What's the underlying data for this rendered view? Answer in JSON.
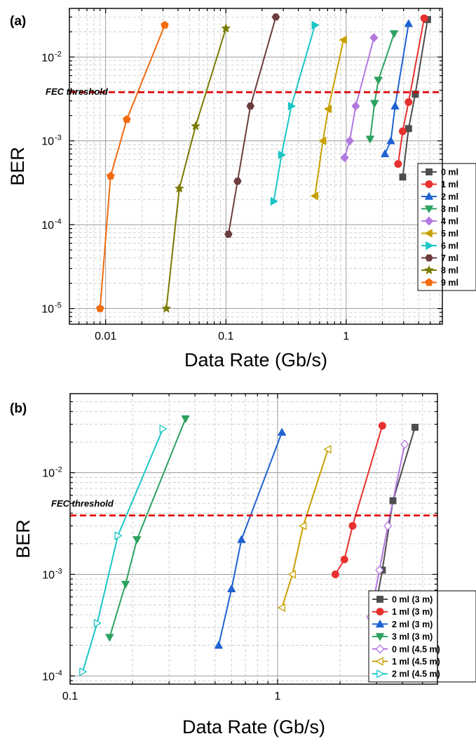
{
  "chart_data": [
    {
      "panel_label": "(a)",
      "type": "line",
      "xlabel": "Data Rate (Gb/s)",
      "ylabel": "BER",
      "xscale": "log",
      "yscale": "log",
      "xlim": [
        0.005,
        6.3
      ],
      "ylim": [
        6.5e-06,
        0.038
      ],
      "x_ticks": [
        {
          "v": 0.01,
          "label": "0.01"
        },
        {
          "v": 0.1,
          "label": "0.1"
        },
        {
          "v": 1,
          "label": "1"
        }
      ],
      "y_ticks": [
        {
          "v": 1e-05,
          "base": "10",
          "exp": "-5"
        },
        {
          "v": 0.0001,
          "base": "10",
          "exp": "-4"
        },
        {
          "v": 0.001,
          "base": "10",
          "exp": "-3"
        },
        {
          "v": 0.01,
          "base": "10",
          "exp": "-2"
        }
      ],
      "grid": true,
      "legend_position": "lower-right",
      "threshold": {
        "label": "FEC threshold",
        "y": 0.0038,
        "color": "#e00000"
      },
      "series": [
        {
          "name": "0 ml",
          "color": "#4d4d4d",
          "marker": "square",
          "x": [
            2.95,
            3.3,
            3.75,
            4.75
          ],
          "y": [
            0.00037,
            0.0014,
            0.0036,
            0.028
          ]
        },
        {
          "name": "1 ml",
          "color": "#e8302f",
          "marker": "circle",
          "x": [
            2.7,
            2.95,
            3.3,
            4.45
          ],
          "y": [
            0.00053,
            0.0013,
            0.0029,
            0.029
          ]
        },
        {
          "name": "2 ml",
          "color": "#1f62d2",
          "marker": "triangle-up",
          "x": [
            2.1,
            2.35,
            2.55,
            3.3
          ],
          "y": [
            0.0007,
            0.001,
            0.0026,
            0.025
          ]
        },
        {
          "name": "3 ml",
          "color": "#2ca25f",
          "marker": "triangle-down",
          "x": [
            1.58,
            1.72,
            1.85,
            2.5
          ],
          "y": [
            0.00105,
            0.0028,
            0.0053,
            0.019
          ]
        },
        {
          "name": "4 ml",
          "color": "#b278e0",
          "marker": "diamond",
          "x": [
            0.97,
            1.07,
            1.2,
            1.7
          ],
          "y": [
            0.00063,
            0.001,
            0.0026,
            0.017
          ]
        },
        {
          "name": "5 ml",
          "color": "#c8a000",
          "marker": "triangle-left",
          "x": [
            0.55,
            0.64,
            0.71,
            0.95
          ],
          "y": [
            0.00022,
            0.001,
            0.0024,
            0.016
          ]
        },
        {
          "name": "6 ml",
          "color": "#1ac6c6",
          "marker": "triangle-right",
          "x": [
            0.25,
            0.29,
            0.35,
            0.55
          ],
          "y": [
            0.00019,
            0.00068,
            0.0026,
            0.024
          ]
        },
        {
          "name": "7 ml",
          "color": "#6d3d3d",
          "marker": "hexagon",
          "x": [
            0.105,
            0.125,
            0.16,
            0.26
          ],
          "y": [
            7.7e-05,
            0.00033,
            0.0026,
            0.03
          ]
        },
        {
          "name": "8 ml",
          "color": "#7a7a00",
          "marker": "star",
          "x": [
            0.032,
            0.041,
            0.056,
            0.1
          ],
          "y": [
            1e-05,
            0.00027,
            0.0015,
            0.022
          ]
        },
        {
          "name": "9 ml",
          "color": "#f26b0f",
          "marker": "pentagon",
          "x": [
            0.009,
            0.011,
            0.015,
            0.031
          ],
          "y": [
            1e-05,
            0.00038,
            0.0018,
            0.024
          ]
        }
      ]
    },
    {
      "panel_label": "(b)",
      "type": "line",
      "xlabel": "Data Rate (Gb/s)",
      "ylabel": "BER",
      "xscale": "log",
      "yscale": "log",
      "xlim": [
        0.1,
        5.9
      ],
      "ylim": [
        8.3e-05,
        0.06
      ],
      "x_ticks": [
        {
          "v": 0.1,
          "label": "0.1"
        },
        {
          "v": 1,
          "label": "1"
        }
      ],
      "y_ticks": [
        {
          "v": 0.0001,
          "base": "10",
          "exp": "-4"
        },
        {
          "v": 0.001,
          "base": "10",
          "exp": "-3"
        },
        {
          "v": 0.01,
          "base": "10",
          "exp": "-2"
        }
      ],
      "grid": true,
      "legend_position": "lower-right",
      "threshold": {
        "label": "FEC threshold",
        "y": 0.0038,
        "color": "#e00000"
      },
      "series": [
        {
          "name": "0 ml (3 m)",
          "color": "#4d4d4d",
          "marker": "square",
          "filled": true,
          "x": [
            2.9,
            3.2,
            3.6,
            4.6
          ],
          "y": [
            0.00037,
            0.0011,
            0.0053,
            0.028
          ]
        },
        {
          "name": "1 ml (3 m)",
          "color": "#e8302f",
          "marker": "circle",
          "filled": true,
          "x": [
            1.9,
            2.1,
            2.3,
            3.2
          ],
          "y": [
            0.001,
            0.0014,
            0.003,
            0.029
          ]
        },
        {
          "name": "2 ml (3 m)",
          "color": "#1f62d2",
          "marker": "triangle-up",
          "filled": true,
          "x": [
            0.52,
            0.6,
            0.67,
            1.05
          ],
          "y": [
            0.0002,
            0.00072,
            0.0022,
            0.025
          ]
        },
        {
          "name": "3 ml (3 m)",
          "color": "#2ca25f",
          "marker": "triangle-down",
          "filled": true,
          "x": [
            0.155,
            0.185,
            0.21,
            0.36
          ],
          "y": [
            0.00024,
            0.0008,
            0.0022,
            0.034
          ]
        },
        {
          "name": "0 ml (4.5 m)",
          "color": "#b278e0",
          "marker": "diamond",
          "filled": false,
          "x": [
            2.8,
            3.1,
            3.4,
            4.1
          ],
          "y": [
            0.00038,
            0.0011,
            0.003,
            0.019
          ]
        },
        {
          "name": "1 ml (4.5 m)",
          "color": "#c8a000",
          "marker": "triangle-left",
          "filled": false,
          "x": [
            1.05,
            1.18,
            1.33,
            1.75
          ],
          "y": [
            0.00047,
            0.001,
            0.003,
            0.017
          ]
        },
        {
          "name": "2 ml (4.5 m)",
          "color": "#1ac6c6",
          "marker": "triangle-right",
          "filled": false,
          "x": [
            0.115,
            0.135,
            0.17,
            0.28
          ],
          "y": [
            0.00011,
            0.00033,
            0.0024,
            0.027
          ]
        }
      ]
    }
  ]
}
